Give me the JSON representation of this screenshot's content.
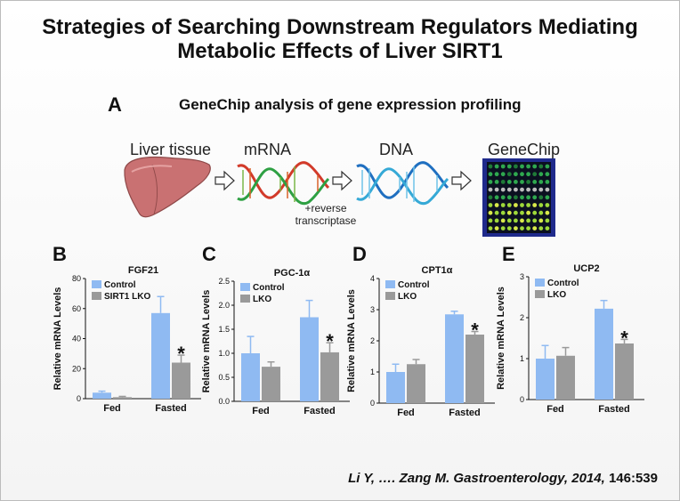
{
  "title_line1": "Strategies of Searching Downstream Regulators Mediating",
  "title_line2": "Metabolic Effects of Liver SIRT1",
  "panel_a": {
    "letter": "A",
    "heading": "GeneChip analysis of gene expression profiling",
    "steps": [
      "Liver tissue",
      "mRNA",
      "DNA",
      "GeneChip"
    ],
    "note_line1": "+reverse",
    "note_line2": "transcriptase"
  },
  "colors": {
    "control": "#8fbaf2",
    "lko": "#9a9a9a",
    "liver": "#c46a6a",
    "chip_bg": "#1f2a8c"
  },
  "chart_data": [
    {
      "letter": "B",
      "type": "bar",
      "title": "FGF21",
      "ylabel": "Relative mRNA Levels",
      "categories": [
        "Fed",
        "Fasted"
      ],
      "ylim": [
        0,
        80
      ],
      "yticks": [
        0,
        20,
        40,
        60,
        80
      ],
      "series": [
        {
          "name": "Control",
          "values": [
            4,
            57
          ],
          "errors": [
            1,
            11
          ]
        },
        {
          "name": "SIRT1 LKO",
          "values": [
            1,
            24
          ],
          "errors": [
            0.5,
            5
          ]
        }
      ],
      "annotations": [
        {
          "text": "*",
          "category": "Fasted",
          "series": "SIRT1 LKO"
        }
      ]
    },
    {
      "letter": "C",
      "type": "bar",
      "title": "PGC-1α",
      "ylabel": "Relative mRNA Levels",
      "categories": [
        "Fed",
        "Fasted"
      ],
      "ylim": [
        0,
        2.5
      ],
      "yticks": [
        0.0,
        0.5,
        1.0,
        1.5,
        2.0,
        2.5
      ],
      "series": [
        {
          "name": "Control",
          "values": [
            1.0,
            1.75
          ],
          "errors": [
            0.35,
            0.35
          ]
        },
        {
          "name": "LKO",
          "values": [
            0.72,
            1.02
          ],
          "errors": [
            0.1,
            0.2
          ]
        }
      ],
      "annotations": [
        {
          "text": "*",
          "category": "Fasted",
          "series": "LKO"
        }
      ]
    },
    {
      "letter": "D",
      "type": "bar",
      "title": "CPT1α",
      "ylabel": "Relative mRNA Levels",
      "categories": [
        "Fed",
        "Fasted"
      ],
      "ylim": [
        0,
        4
      ],
      "yticks": [
        0,
        1,
        2,
        3,
        4
      ],
      "series": [
        {
          "name": "Control",
          "values": [
            1.0,
            2.85
          ],
          "errors": [
            0.25,
            0.1
          ]
        },
        {
          "name": "LKO",
          "values": [
            1.25,
            2.2
          ],
          "errors": [
            0.15,
            0.1
          ]
        }
      ],
      "annotations": [
        {
          "text": "*",
          "category": "Fasted",
          "series": "LKO"
        }
      ]
    },
    {
      "letter": "E",
      "type": "bar",
      "title": "UCP2",
      "ylabel": "Relative mRNA Levels",
      "categories": [
        "Fed",
        "Fasted"
      ],
      "ylim": [
        0,
        3
      ],
      "yticks": [
        0,
        1,
        2,
        3
      ],
      "series": [
        {
          "name": "Control",
          "values": [
            1.0,
            2.22
          ],
          "errors": [
            0.32,
            0.2
          ]
        },
        {
          "name": "LKO",
          "values": [
            1.07,
            1.37
          ],
          "errors": [
            0.2,
            0.1
          ]
        }
      ],
      "annotations": [
        {
          "text": "*",
          "category": "Fasted",
          "series": "LKO"
        }
      ]
    }
  ],
  "citation": {
    "authors": "Li Y, …. Zang M.  ",
    "journal": "Gastroenterology, 2014, ",
    "volume": "146:539"
  }
}
